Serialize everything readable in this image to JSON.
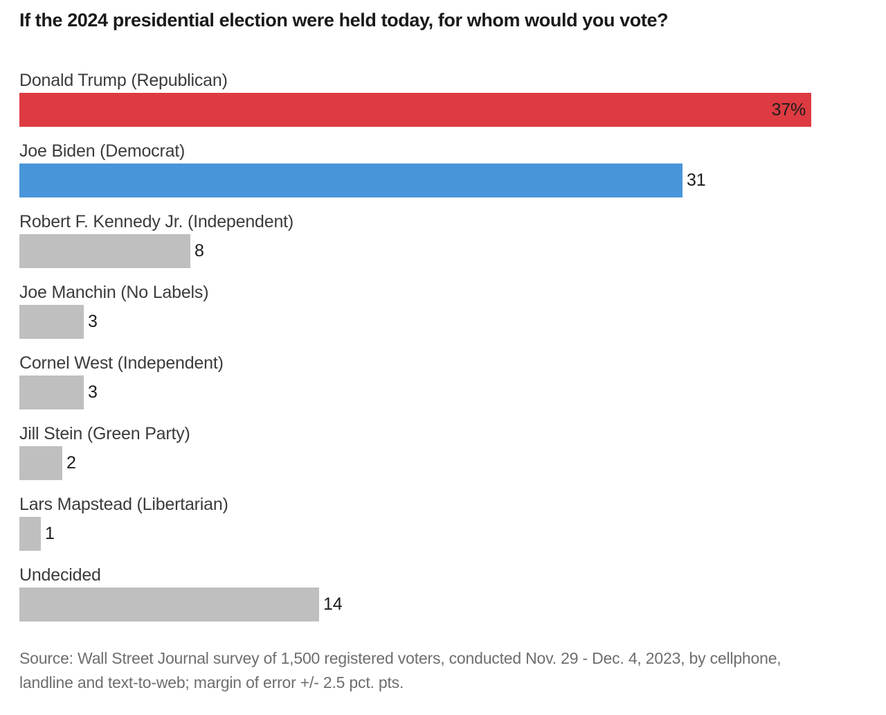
{
  "chart_data": {
    "type": "bar",
    "orientation": "horizontal",
    "title": "If the 2024 presidential election were held today, for whom would you vote?",
    "categories": [
      "Donald Trump (Republican)",
      "Joe Biden (Democrat)",
      "Robert F. Kennedy Jr. (Independent)",
      "Joe Manchin (No Labels)",
      "Cornel West (Independent)",
      "Jill Stein (Green Party)",
      "Lars Mapstead (Libertarian)",
      "Undecided"
    ],
    "values": [
      37,
      31,
      8,
      3,
      3,
      2,
      1,
      14
    ],
    "value_labels": [
      "37%",
      "31",
      "8",
      "3",
      "3",
      "2",
      "1",
      "14"
    ],
    "value_label_inside": [
      true,
      false,
      false,
      false,
      false,
      false,
      false,
      false
    ],
    "bar_colors": [
      "#dd3b41",
      "#4896d9",
      "#bfbfbf",
      "#bfbfbf",
      "#bfbfbf",
      "#bfbfbf",
      "#bfbfbf",
      "#bfbfbf"
    ],
    "xlim": [
      0,
      37
    ],
    "grid": false,
    "legend": false,
    "unit": "percent of registered voters",
    "source_lines": [
      "Source: Wall Street Journal survey of 1,500 registered voters, conducted Nov. 29 - Dec. 4, 2023, by cellphone,",
      "landline and text-to-web; margin of error +/- 2.5 pct. pts."
    ]
  },
  "colors": {
    "republican_red": "#dd3b41",
    "democrat_blue": "#4896d9",
    "other_gray": "#bfbfbf",
    "title_text": "#1a1a1a",
    "label_text": "#3b3b3b",
    "value_text": "#1c1c1c",
    "source_text": "#6e6e6e",
    "background": "#ffffff"
  }
}
